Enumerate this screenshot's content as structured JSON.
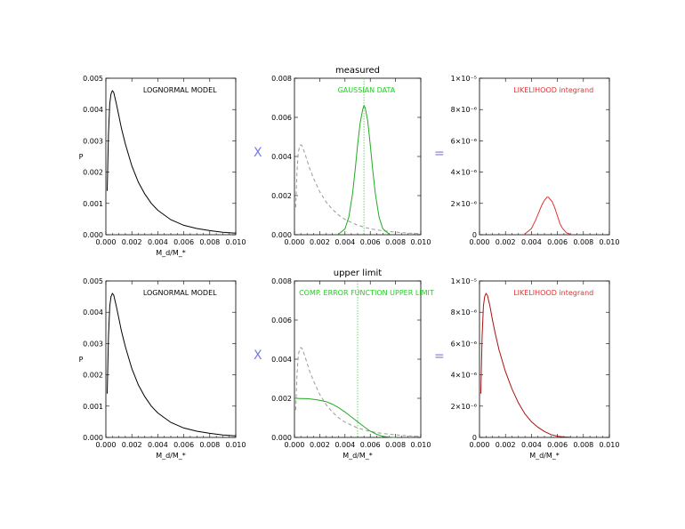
{
  "chart_data": [
    {
      "id": "p1",
      "type": "line",
      "title": "",
      "annotation": "LOGNORMAL MODEL",
      "xlabel": "M_d/M_*",
      "ylabel": "P",
      "xlim": [
        0,
        0.01
      ],
      "ylim": [
        0,
        0.005
      ],
      "xticks": [
        "0.000",
        "0.002",
        "0.004",
        "0.006",
        "0.008",
        "0.010"
      ],
      "yticks": [
        "0.000",
        "0.001",
        "0.002",
        "0.003",
        "0.004",
        "0.005"
      ],
      "series": [
        {
          "style": "solid",
          "color": "#000000",
          "x": [
            0.0001,
            0.0002,
            0.0003,
            0.0004,
            0.0005,
            0.0006,
            0.0008,
            0.001,
            0.0012,
            0.0015,
            0.002,
            0.0025,
            0.003,
            0.0035,
            0.004,
            0.005,
            0.006,
            0.007,
            0.008,
            0.009,
            0.01
          ],
          "y": [
            0.0014,
            0.0032,
            0.0042,
            0.0045,
            0.0046,
            0.00455,
            0.0042,
            0.0038,
            0.0034,
            0.0029,
            0.0022,
            0.00168,
            0.0013,
            0.001,
            0.00078,
            0.00048,
            0.0003,
            0.0002,
            0.00013,
            8e-05,
            5e-05
          ]
        }
      ]
    },
    {
      "id": "p2",
      "type": "line",
      "title": "measured",
      "annotation": "GAUSSIAN DATA",
      "xlabel": "",
      "ylabel": "",
      "xlim": [
        0,
        0.01
      ],
      "ylim": [
        0,
        0.008
      ],
      "xticks": [
        "0.000",
        "0.002",
        "0.004",
        "0.006",
        "0.008",
        "0.010"
      ],
      "yticks": [
        "0.000",
        "0.002",
        "0.004",
        "0.006",
        "0.008"
      ],
      "vline": 0.0055,
      "series": [
        {
          "style": "dashed",
          "color": "#999999",
          "x": [
            0.0001,
            0.0002,
            0.0003,
            0.0004,
            0.0005,
            0.0006,
            0.0008,
            0.001,
            0.0012,
            0.0015,
            0.002,
            0.0025,
            0.003,
            0.0035,
            0.004,
            0.005,
            0.006,
            0.007,
            0.008,
            0.009,
            0.01
          ],
          "y": [
            0.0014,
            0.0032,
            0.0042,
            0.0045,
            0.0046,
            0.00455,
            0.0042,
            0.0038,
            0.0034,
            0.0029,
            0.0022,
            0.00168,
            0.0013,
            0.001,
            0.00078,
            0.00048,
            0.0003,
            0.0002,
            0.00013,
            8e-05,
            5e-05
          ]
        },
        {
          "style": "solid",
          "color": "#22aa22",
          "x": [
            0.0035,
            0.004,
            0.0043,
            0.0046,
            0.0048,
            0.005,
            0.0052,
            0.0054,
            0.0055,
            0.0056,
            0.0058,
            0.006,
            0.0062,
            0.0064,
            0.0067,
            0.007,
            0.0075
          ],
          "y": [
            3e-05,
            0.0003,
            0.0009,
            0.0021,
            0.0033,
            0.0046,
            0.0057,
            0.0064,
            0.0066,
            0.0065,
            0.0058,
            0.0046,
            0.0033,
            0.0021,
            0.0009,
            0.0003,
            3e-05
          ]
        }
      ]
    },
    {
      "id": "p3",
      "type": "line",
      "title": "",
      "annotation": "LIKELIHOOD integrand",
      "xlabel": "",
      "ylabel": "",
      "xlim": [
        0,
        0.01
      ],
      "ylim": [
        0,
        1e-05
      ],
      "xticks": [
        "0.000",
        "0.002",
        "0.004",
        "0.006",
        "0.008",
        "0.010"
      ],
      "yticks": [
        "0",
        "2×10⁻⁶",
        "4×10⁻⁶",
        "6×10⁻⁶",
        "8×10⁻⁶",
        "1×10⁻⁵"
      ],
      "series": [
        {
          "style": "solid",
          "color": "#dd3333",
          "x": [
            0.0035,
            0.004,
            0.0043,
            0.0046,
            0.0048,
            0.005,
            0.0052,
            0.0053,
            0.0054,
            0.0056,
            0.0058,
            0.006,
            0.0062,
            0.0064,
            0.0067,
            0.007
          ],
          "y": [
            5e-08,
            4e-07,
            9e-07,
            1.5e-06,
            1.9e-06,
            2.2e-06,
            2.4e-06,
            2.4e-06,
            2.3e-06,
            2.1e-06,
            1.7e-06,
            1.2e-06,
            7e-07,
            4e-07,
            1.2e-07,
            3e-08
          ]
        }
      ]
    },
    {
      "id": "p4",
      "type": "line",
      "title": "",
      "annotation": "LOGNORMAL MODEL",
      "xlabel": "M_d/M_*",
      "ylabel": "P",
      "xlim": [
        0,
        0.01
      ],
      "ylim": [
        0,
        0.005
      ],
      "xticks": [
        "0.000",
        "0.002",
        "0.004",
        "0.006",
        "0.008",
        "0.010"
      ],
      "yticks": [
        "0.000",
        "0.001",
        "0.002",
        "0.003",
        "0.004",
        "0.005"
      ],
      "series": [
        {
          "style": "solid",
          "color": "#000000",
          "x": [
            0.0001,
            0.0002,
            0.0003,
            0.0004,
            0.0005,
            0.0006,
            0.0008,
            0.001,
            0.0012,
            0.0015,
            0.002,
            0.0025,
            0.003,
            0.0035,
            0.004,
            0.005,
            0.006,
            0.007,
            0.008,
            0.009,
            0.01
          ],
          "y": [
            0.0014,
            0.0032,
            0.0042,
            0.0045,
            0.0046,
            0.00455,
            0.0042,
            0.0038,
            0.0034,
            0.0029,
            0.0022,
            0.00168,
            0.0013,
            0.001,
            0.00078,
            0.00048,
            0.0003,
            0.0002,
            0.00013,
            8e-05,
            5e-05
          ]
        }
      ]
    },
    {
      "id": "p5",
      "type": "line",
      "title": "upper limit",
      "annotation": "COMP. ERROR FUNCTION UPPER LIMIT",
      "xlabel": "M_d/M_*",
      "ylabel": "",
      "xlim": [
        0,
        0.01
      ],
      "ylim": [
        0,
        0.008
      ],
      "xticks": [
        "0.000",
        "0.002",
        "0.004",
        "0.006",
        "0.008",
        "0.010"
      ],
      "yticks": [
        "0.000",
        "0.002",
        "0.004",
        "0.006",
        "0.008"
      ],
      "vline": 0.005,
      "series": [
        {
          "style": "dashed",
          "color": "#999999",
          "x": [
            0.0001,
            0.0002,
            0.0003,
            0.0004,
            0.0005,
            0.0006,
            0.0008,
            0.001,
            0.0012,
            0.0015,
            0.002,
            0.0025,
            0.003,
            0.0035,
            0.004,
            0.005,
            0.006,
            0.007,
            0.008,
            0.009,
            0.01
          ],
          "y": [
            0.0014,
            0.0032,
            0.0042,
            0.0045,
            0.0046,
            0.00455,
            0.0042,
            0.0038,
            0.0034,
            0.0029,
            0.0022,
            0.00168,
            0.0013,
            0.001,
            0.00078,
            0.00048,
            0.0003,
            0.0002,
            0.00013,
            8e-05,
            5e-05
          ]
        },
        {
          "style": "solid",
          "color": "#22aa22",
          "x": [
            0.0,
            0.0005,
            0.001,
            0.0015,
            0.002,
            0.0025,
            0.003,
            0.0035,
            0.004,
            0.0045,
            0.005,
            0.0055,
            0.006,
            0.0065,
            0.007,
            0.0075,
            0.008
          ],
          "y": [
            0.002,
            0.00199,
            0.00198,
            0.00195,
            0.0019,
            0.00183,
            0.0017,
            0.00152,
            0.0013,
            0.00105,
            0.0008,
            0.00055,
            0.00032,
            0.00016,
            6e-05,
            2e-05,
            0.0
          ]
        }
      ]
    },
    {
      "id": "p6",
      "type": "line",
      "title": "",
      "annotation": "LIKELIHOOD integrand",
      "xlabel": "M_d/M_*",
      "ylabel": "",
      "xlim": [
        0,
        0.01
      ],
      "ylim": [
        0,
        1e-05
      ],
      "xticks": [
        "0.000",
        "0.002",
        "0.004",
        "0.006",
        "0.008",
        "0.010"
      ],
      "yticks": [
        "0",
        "2×10⁻⁶",
        "4×10⁻⁶",
        "6×10⁻⁶",
        "8×10⁻⁶",
        "1×10⁻⁵"
      ],
      "series": [
        {
          "style": "solid",
          "color": "#aa1111",
          "x": [
            0.0001,
            0.0002,
            0.0003,
            0.0004,
            0.0005,
            0.0006,
            0.0008,
            0.001,
            0.0012,
            0.0015,
            0.002,
            0.0025,
            0.003,
            0.0035,
            0.004,
            0.0045,
            0.005,
            0.0055,
            0.006,
            0.0065,
            0.007
          ],
          "y": [
            2.8e-06,
            6.4e-06,
            8.4e-06,
            9e-06,
            9.2e-06,
            9.1e-06,
            8.4e-06,
            7.5e-06,
            6.7e-06,
            5.6e-06,
            4.2e-06,
            3.1e-06,
            2.2e-06,
            1.5e-06,
            1e-06,
            6.5e-07,
            3.8e-07,
            1.8e-07,
            8e-08,
            3e-08,
            1e-08
          ]
        }
      ]
    }
  ],
  "operators": [
    {
      "id": "op1",
      "text": "X"
    },
    {
      "id": "op2",
      "text": "="
    },
    {
      "id": "op3",
      "text": "X"
    },
    {
      "id": "op4",
      "text": "="
    }
  ],
  "colors": {
    "annotation_model": "#000000",
    "annotation_data": "#22cc22",
    "annotation_like": "#dd3333",
    "vline": "#22cc22",
    "operator": "#7a7ae6"
  }
}
